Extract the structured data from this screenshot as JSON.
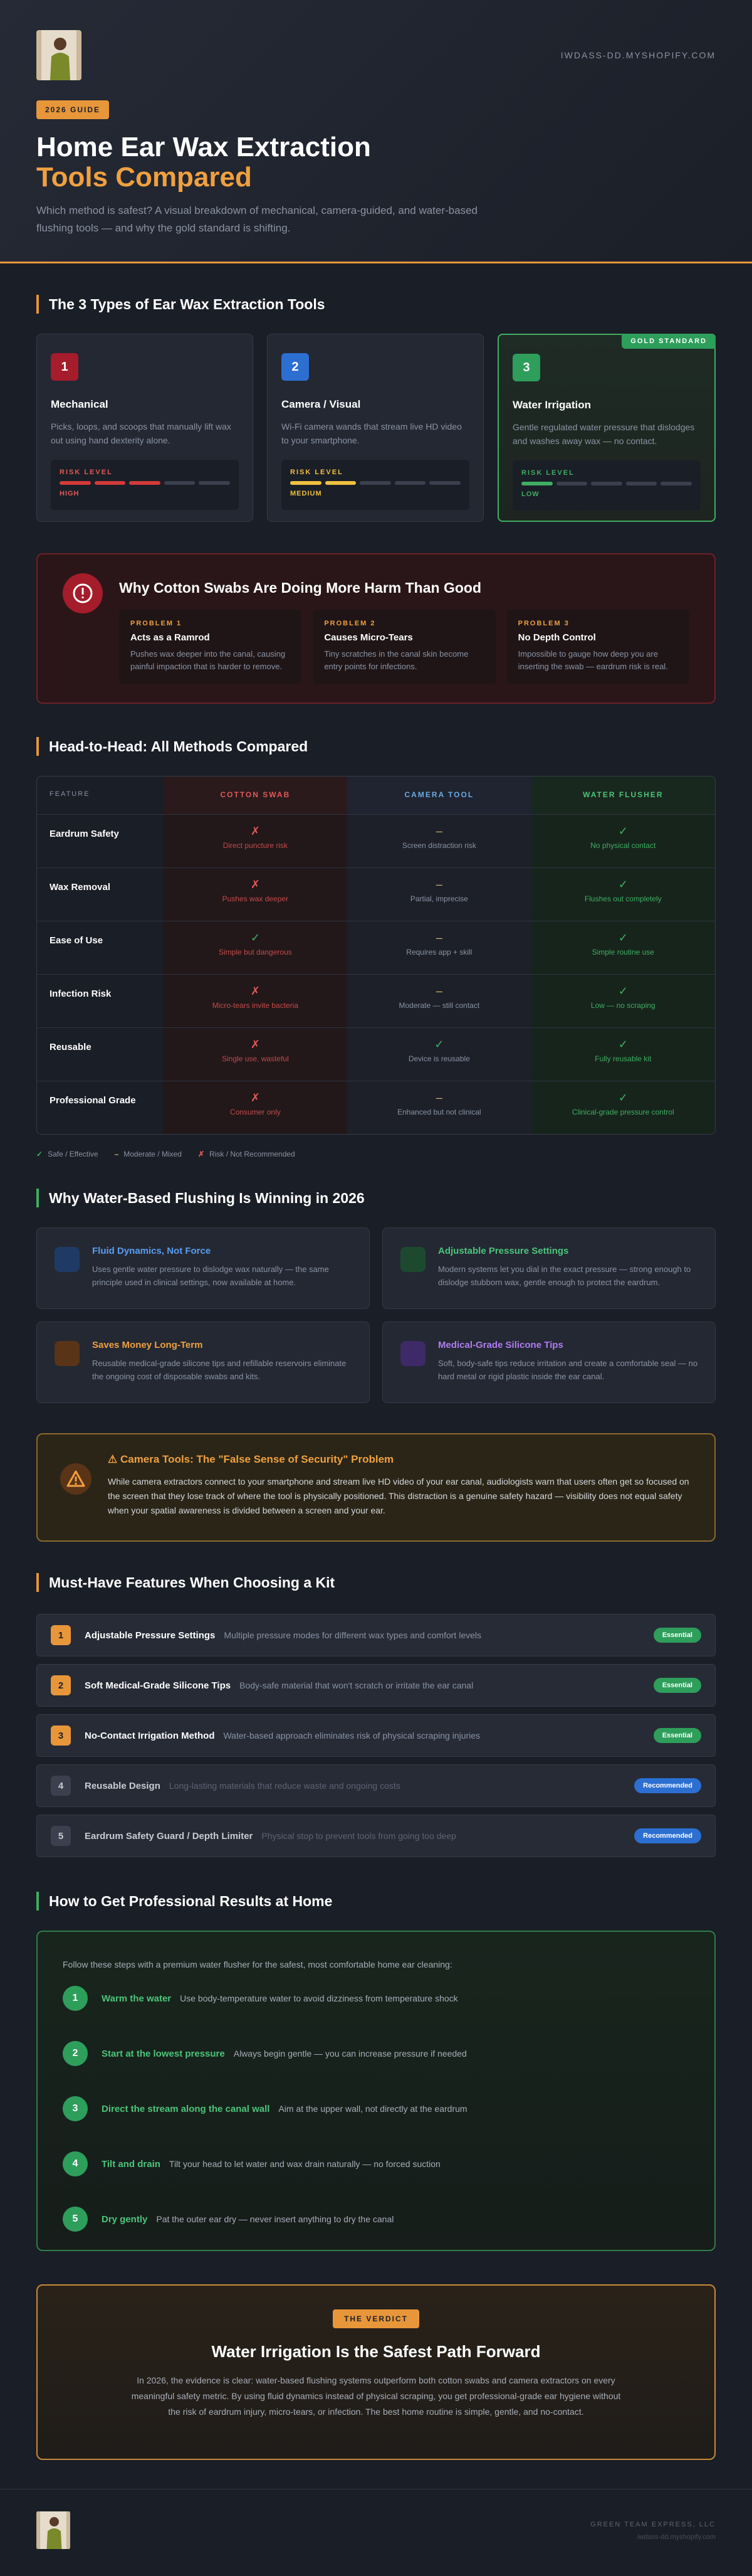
{
  "header": {
    "site": "IWDASS-DD.MYSHOPIFY.COM",
    "badge": "2026 GUIDE",
    "title_line1": "Home Ear Wax Extraction",
    "title_line2": "Tools Compared",
    "subtitle": "Which method is safest? A visual breakdown of mechanical, camera-guided, and water-based flushing tools — and why the gold standard is shifting."
  },
  "types": {
    "heading": "The 3 Types of Ear Wax Extraction Tools",
    "risk_label": "RISK LEVEL",
    "risk_max": 5,
    "gold_badge": "GOLD STANDARD",
    "cards": [
      {
        "num": 1,
        "title": "Mechanical",
        "desc": "Picks, loops, and scoops that manually lift wax out using hand dexterity alone.",
        "risk": "HIGH",
        "risk_bars": 3,
        "color": "#d23a3a"
      },
      {
        "num": 2,
        "title": "Camera / Visual",
        "desc": "Wi-Fi camera wands that stream live HD video to your smartphone.",
        "risk": "MEDIUM",
        "risk_bars": 2,
        "color": "#f0c040"
      },
      {
        "num": 3,
        "title": "Water Irrigation",
        "desc": "Gentle regulated water pressure that dislodges and washes away wax — no contact.",
        "risk": "LOW",
        "risk_bars": 1,
        "color": "#3fae62"
      }
    ]
  },
  "swabs": {
    "title": "Why Cotton Swabs Are Doing More Harm Than Good",
    "problems": [
      {
        "label": "PROBLEM 1",
        "title": "Acts as a Ramrod",
        "desc": "Pushes wax deeper into the canal, causing painful impaction that is harder to remove."
      },
      {
        "label": "PROBLEM 2",
        "title": "Causes Micro-Tears",
        "desc": "Tiny scratches in the canal skin become entry points for infections."
      },
      {
        "label": "PROBLEM 3",
        "title": "No Depth Control",
        "desc": "Impossible to gauge how deep you are inserting the swab — eardrum risk is real."
      }
    ]
  },
  "compare": {
    "heading": "Head-to-Head: All Methods Compared",
    "columns": [
      "FEATURE",
      "COTTON SWAB",
      "CAMERA TOOL",
      "WATER FLUSHER"
    ],
    "rows": [
      {
        "feature": "Eardrum Safety",
        "cells": [
          [
            "✗",
            "Direct puncture risk"
          ],
          [
            "–",
            "Screen distraction risk"
          ],
          [
            "✓",
            "No physical contact"
          ]
        ]
      },
      {
        "feature": "Wax Removal",
        "cells": [
          [
            "✗",
            "Pushes wax deeper"
          ],
          [
            "–",
            "Partial, imprecise"
          ],
          [
            "✓",
            "Flushes out completely"
          ]
        ]
      },
      {
        "feature": "Ease of Use",
        "cells": [
          [
            "✓",
            "Simple but dangerous"
          ],
          [
            "–",
            "Requires app + skill"
          ],
          [
            "✓",
            "Simple routine use"
          ]
        ]
      },
      {
        "feature": "Infection Risk",
        "cells": [
          [
            "✗",
            "Micro-tears invite bacteria"
          ],
          [
            "–",
            "Moderate — still contact"
          ],
          [
            "✓",
            "Low — no scraping"
          ]
        ]
      },
      {
        "feature": "Reusable",
        "cells": [
          [
            "✗",
            "Single use, wasteful"
          ],
          [
            "✓",
            "Device is reusable"
          ],
          [
            "✓",
            "Fully reusable kit"
          ]
        ]
      },
      {
        "feature": "Professional Grade",
        "cells": [
          [
            "✗",
            "Consumer only"
          ],
          [
            "–",
            "Enhanced but not clinical"
          ],
          [
            "✓",
            "Clinical-grade pressure control"
          ]
        ]
      }
    ],
    "legend": [
      {
        "symbol": "✓",
        "label": "Safe / Effective",
        "color": "#3fae62"
      },
      {
        "symbol": "–",
        "label": "Moderate / Mixed",
        "color": "#c9b26a"
      },
      {
        "symbol": "✗",
        "label": "Risk / Not Recommended",
        "color": "#e05a5a"
      }
    ]
  },
  "why": {
    "heading": "Why Water-Based Flushing Is Winning in 2026",
    "items": [
      {
        "title": "Fluid Dynamics, Not Force",
        "desc": "Uses gentle water pressure to dislodge wax naturally — the same principle used in clinical settings, now available at home."
      },
      {
        "title": "Adjustable Pressure Settings",
        "desc": "Modern systems let you dial in the exact pressure — strong enough to dislodge stubborn wax, gentle enough to protect the eardrum."
      },
      {
        "title": "Saves Money Long-Term",
        "desc": "Reusable medical-grade silicone tips and refillable reservoirs eliminate the ongoing cost of disposable swabs and kits."
      },
      {
        "title": "Medical-Grade Silicone Tips",
        "desc": "Soft, body-safe tips reduce irritation and create a comfortable seal — no hard metal or rigid plastic inside the ear canal."
      }
    ]
  },
  "camera": {
    "title": "⚠ Camera Tools: The \"False Sense of Security\" Problem",
    "body": "While camera extractors connect to your smartphone and stream live HD video of your ear canal, audiologists warn that users often get so focused on the screen that they lose track of where the tool is physically positioned. This distraction is a genuine safety hazard — visibility does not equal safety when your spatial awareness is divided between a screen and your ear."
  },
  "features": {
    "heading": "Must-Have Features When Choosing a Kit",
    "items": [
      {
        "num": 1,
        "title": "Adjustable Pressure Settings",
        "desc": "Multiple pressure modes for different wax types and comfort levels",
        "tag": "Essential",
        "num_color": "#e8963a",
        "tag_color": "#2e9e5b"
      },
      {
        "num": 2,
        "title": "Soft Medical-Grade Silicone Tips",
        "desc": "Body-safe material that won't scratch or irritate the ear canal",
        "tag": "Essential",
        "num_color": "#e8963a",
        "tag_color": "#2e9e5b"
      },
      {
        "num": 3,
        "title": "No-Contact Irrigation Method",
        "desc": "Water-based approach eliminates risk of physical scraping injuries",
        "tag": "Essential",
        "num_color": "#e8963a",
        "tag_color": "#2e9e5b"
      },
      {
        "num": 4,
        "title": "Reusable Design",
        "desc": "Long-lasting materials that reduce waste and ongoing costs",
        "tag": "Recommended",
        "num_color": "#3a404d",
        "tag_color": "#2c6fd1"
      },
      {
        "num": 5,
        "title": "Eardrum Safety Guard / Depth Limiter",
        "desc": "Physical stop to prevent tools from going too deep",
        "tag": "Recommended",
        "num_color": "#3a404d",
        "tag_color": "#2c6fd1"
      }
    ]
  },
  "how": {
    "heading": "How to Get Professional Results at Home",
    "intro": "Follow these steps with a premium water flusher for the safest, most comfortable home ear cleaning:",
    "steps": [
      {
        "num": 1,
        "title": "Warm the water",
        "desc": "Use body-temperature water to avoid dizziness from temperature shock"
      },
      {
        "num": 2,
        "title": "Start at the lowest pressure",
        "desc": "Always begin gentle — you can increase pressure if needed"
      },
      {
        "num": 3,
        "title": "Direct the stream along the canal wall",
        "desc": "Aim at the upper wall, not directly at the eardrum"
      },
      {
        "num": 4,
        "title": "Tilt and drain",
        "desc": "Tilt your head to let water and wax drain naturally — no forced suction"
      },
      {
        "num": 5,
        "title": "Dry gently",
        "desc": "Pat the outer ear dry — never insert anything to dry the canal"
      }
    ]
  },
  "verdict": {
    "badge": "THE VERDICT",
    "title": "Water Irrigation Is the Safest Path Forward",
    "body": "In 2026, the evidence is clear: water-based flushing systems outperform both cotton swabs and camera extractors on every meaningful safety metric. By using fluid dynamics instead of physical scraping, you get professional-grade ear hygiene without the risk of eardrum injury, micro-tears, or infection. The best home routine is simple, gentle, and no-contact."
  },
  "footer": {
    "company": "GREEN TEAM EXPRESS, LLC",
    "site": "iwdass-dd.myshopify.com"
  }
}
